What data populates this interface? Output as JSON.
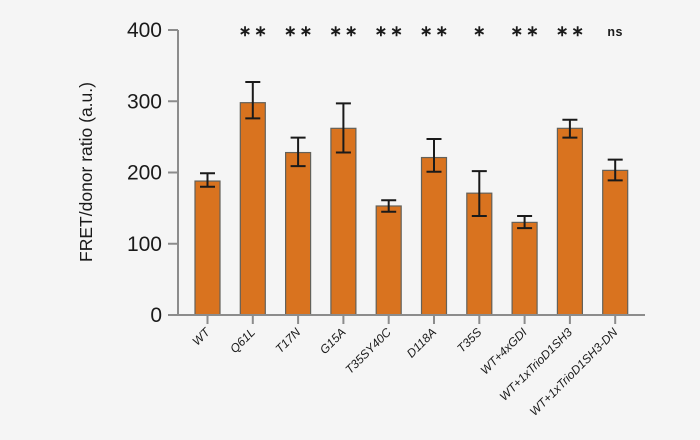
{
  "figure": {
    "background_color": "#f5f5f5",
    "bar_color": "#d9731f",
    "bar_edge_color": "#63615a",
    "error_bar_color": "#1a1a1a",
    "axis_color": "#8c8c8c",
    "text_color": "#1a1a1a"
  },
  "chart_data": {
    "type": "bar",
    "title": "",
    "xlabel": "",
    "ylabel": "FRET/donor ratio (a.u.)",
    "ylim": [
      0,
      400
    ],
    "yticks": [
      0,
      100,
      200,
      300,
      400
    ],
    "grid": false,
    "legend": null,
    "categories": [
      "WT",
      "Q61L",
      "T17N",
      "G15A",
      "T35SY40C",
      "D118A",
      "T35S",
      "WT+4xGDI",
      "WT+1xTrioD1SH3",
      "WT+1xTrioD1SH3-DN"
    ],
    "series": [
      {
        "name": "FRET/donor ratio (a.u.)",
        "values": [
          188,
          298,
          228,
          262,
          153,
          221,
          171,
          130,
          262,
          203
        ],
        "errors_plus": [
          11,
          29,
          21,
          35,
          8,
          26,
          31,
          9,
          12,
          15
        ],
        "errors_minus": [
          8,
          22,
          19,
          34,
          8,
          20,
          32,
          8,
          13,
          14
        ]
      }
    ],
    "significance_markers": [
      "",
      "**",
      "**",
      "**",
      "**",
      "**",
      "*",
      "**",
      "**",
      "ns"
    ]
  }
}
